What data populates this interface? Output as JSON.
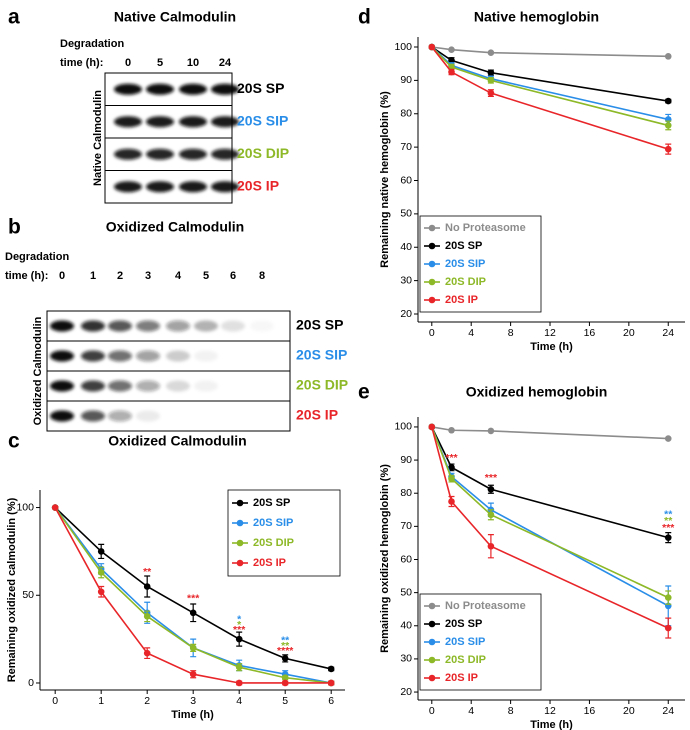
{
  "blots": [
    {
      "letter": "a",
      "title": "Native Calmodulin",
      "time_label": [
        "Degradation",
        "time (h):"
      ],
      "times": [
        "0",
        "5",
        "10",
        "24"
      ],
      "side_label": "Native Calmodulin",
      "lanes": [
        "20S SP",
        "20S SIP",
        "20S DIP",
        "20S IP"
      ],
      "lane_colors": [
        "#000000",
        "#2a8ee8",
        "#8db827",
        "#e8262a"
      ]
    },
    {
      "letter": "b",
      "title": "Oxidized Calmodulin",
      "time_label": [
        "Degradation",
        "time (h):"
      ],
      "times": [
        "0",
        "1",
        "2",
        "3",
        "4",
        "5",
        "6",
        "8"
      ],
      "side_label": "Oxidized Calmodulin",
      "lanes": [
        "20S SP",
        "20S SIP",
        "20S DIP",
        "20S IP"
      ],
      "lane_colors": [
        "#000000",
        "#2a8ee8",
        "#8db827",
        "#e8262a"
      ]
    }
  ],
  "chart_data": [
    {
      "type": "line",
      "letter": "c",
      "title": "Oxidized Calmodulin",
      "xlabel": "Time (h)",
      "ylabel": "Remaining oxidized calmodulin (%)",
      "x": [
        0,
        1,
        2,
        3,
        4,
        5,
        6
      ],
      "xlim": [
        -0.33,
        6.3
      ],
      "ylim": [
        -4,
        110
      ],
      "xticks": [
        0,
        1,
        2,
        3,
        4,
        5,
        6
      ],
      "yticks": [
        0,
        50,
        100
      ],
      "legend": "upper right",
      "series": [
        {
          "name": "20S SP",
          "color": "#000000",
          "values": [
            100,
            75,
            55,
            40,
            25,
            14,
            8
          ],
          "errors": [
            0,
            4,
            6,
            5,
            4,
            2,
            1
          ]
        },
        {
          "name": "20S SIP",
          "color": "#2a8ee8",
          "values": [
            100,
            65,
            40,
            20,
            10,
            5,
            0
          ],
          "errors": [
            0,
            3,
            6,
            5,
            3,
            2,
            1
          ]
        },
        {
          "name": "20S DIP",
          "color": "#8db827",
          "values": [
            100,
            63,
            38,
            20,
            9,
            3,
            0
          ],
          "errors": [
            0,
            3,
            3,
            2,
            2,
            1,
            1
          ]
        },
        {
          "name": "20S IP",
          "color": "#e8262a",
          "values": [
            100,
            52,
            17,
            5,
            0,
            0,
            0
          ],
          "errors": [
            0,
            3,
            3,
            2,
            1,
            1,
            1
          ]
        }
      ],
      "annotations": [
        {
          "text": "**",
          "color": "#e8262a",
          "x": 2,
          "y": 63
        },
        {
          "text": "***",
          "color": "#e8262a",
          "x": 3,
          "y": 48
        },
        {
          "text": "*",
          "color": "#2a8ee8",
          "x": 4,
          "y": 36
        },
        {
          "text": "*",
          "color": "#8db827",
          "x": 4,
          "y": 33
        },
        {
          "text": "***",
          "color": "#e8262a",
          "x": 4,
          "y": 30
        },
        {
          "text": "**",
          "color": "#2a8ee8",
          "x": 5,
          "y": 24
        },
        {
          "text": "**",
          "color": "#8db827",
          "x": 5,
          "y": 21
        },
        {
          "text": "****",
          "color": "#e8262a",
          "x": 5,
          "y": 18
        }
      ]
    },
    {
      "type": "line",
      "letter": "d",
      "title": "Native hemoglobin",
      "xlabel": "Time (h)",
      "ylabel": "Remaining native hemoglobin (%)",
      "x": [
        0,
        2,
        6,
        24
      ],
      "xlim": [
        -1.4,
        25.7
      ],
      "ylim": [
        17.6,
        103
      ],
      "xticks": [
        0,
        4,
        8,
        12,
        16,
        20,
        24
      ],
      "yticks": [
        20,
        30,
        40,
        50,
        60,
        70,
        80,
        90,
        100
      ],
      "legend": "lower left",
      "series": [
        {
          "name": "No Proteasome",
          "color": "#8c8c8c",
          "values": [
            100,
            99.2,
            98.3,
            97.2
          ],
          "errors": [
            0,
            0,
            0,
            0
          ]
        },
        {
          "name": "20S SP",
          "color": "#000000",
          "values": [
            100,
            96,
            92.3,
            83.8
          ],
          "errors": [
            0,
            0.8,
            0.8,
            0.5
          ]
        },
        {
          "name": "20S SIP",
          "color": "#2a8ee8",
          "values": [
            100,
            94.5,
            90.5,
            78.3
          ],
          "errors": [
            0,
            0.8,
            0.8,
            1.5
          ]
        },
        {
          "name": "20S DIP",
          "color": "#8db827",
          "values": [
            100,
            94,
            90,
            76.5
          ],
          "errors": [
            0,
            0.8,
            0.8,
            1.3
          ]
        },
        {
          "name": "20S IP",
          "color": "#e8262a",
          "values": [
            100,
            92.5,
            86.2,
            69.4
          ],
          "errors": [
            0,
            0.8,
            1,
            1.5
          ]
        }
      ],
      "annotations": []
    },
    {
      "type": "line",
      "letter": "e",
      "title": "Oxidized hemoglobin",
      "xlabel": "Time (h)",
      "ylabel": "Remaining oxidized hemoglobin (%)",
      "x": [
        0,
        2,
        6,
        24
      ],
      "xlim": [
        -1.4,
        25.7
      ],
      "ylim": [
        17.6,
        103
      ],
      "xticks": [
        0,
        4,
        8,
        12,
        16,
        20,
        24
      ],
      "yticks": [
        20,
        30,
        40,
        50,
        60,
        70,
        80,
        90,
        100
      ],
      "legend": "lower left",
      "series": [
        {
          "name": "No Proteasome",
          "color": "#8c8c8c",
          "values": [
            100,
            99,
            98.8,
            96.5
          ],
          "errors": [
            0,
            0,
            0,
            0
          ]
        },
        {
          "name": "20S SP",
          "color": "#000000",
          "values": [
            100,
            87.8,
            81.2,
            66.6
          ],
          "errors": [
            0,
            1,
            1.2,
            1.5
          ]
        },
        {
          "name": "20S SIP",
          "color": "#2a8ee8",
          "values": [
            100,
            85,
            75,
            46
          ],
          "errors": [
            0,
            1,
            2,
            6
          ]
        },
        {
          "name": "20S DIP",
          "color": "#8db827",
          "values": [
            100,
            84.4,
            73.5,
            48.5
          ],
          "errors": [
            0,
            1,
            1.5,
            2
          ]
        },
        {
          "name": "20S IP",
          "color": "#e8262a",
          "values": [
            100,
            77.5,
            64,
            39.3
          ],
          "errors": [
            0,
            1.5,
            3.5,
            3
          ]
        }
      ],
      "annotations": [
        {
          "text": "***",
          "color": "#e8262a",
          "x": 2,
          "y": 90.5
        },
        {
          "text": "***",
          "color": "#e8262a",
          "x": 6,
          "y": 84.5
        },
        {
          "text": "**",
          "color": "#2a8ee8",
          "x": 24,
          "y": 73.5
        },
        {
          "text": "**",
          "color": "#8db827",
          "x": 24,
          "y": 71.5
        },
        {
          "text": "***",
          "color": "#e8262a",
          "x": 24,
          "y": 69.5
        }
      ]
    }
  ]
}
